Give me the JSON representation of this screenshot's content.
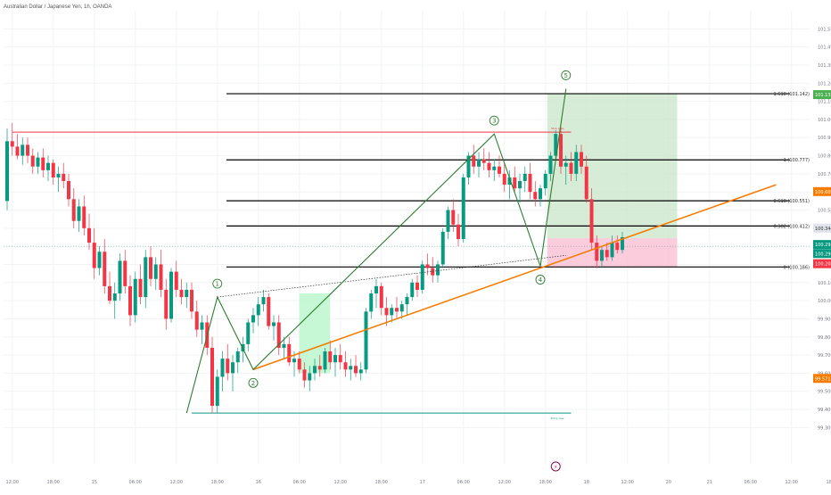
{
  "header": {
    "symbol_title": "Australian Dollar / Japanese Yen, 1h, OANDA"
  },
  "colors": {
    "bull": "#089981",
    "bear": "#f23645",
    "fib": "#000000",
    "trend": "#f57c00",
    "wave": "#2e7d32",
    "target_zone": "#c8e6c9",
    "stop_zone": "#f8bbd0",
    "resistance": "#f23645",
    "support": "#089981",
    "grid": "#f2f3f5",
    "current_price": "#089981",
    "fib1_badge": "#f57c00",
    "fib2_badge": "#4caf50",
    "marker_badge": "#880e4f",
    "low_badge": "#f57c00",
    "stop_badge": "#f23645"
  },
  "chart_data": {
    "type": "candlestick",
    "symbol": "Australian Dollar / Japanese Yen",
    "interval": "1h",
    "exchange": "OANDA",
    "ylim": [
      99.1,
      101.6
    ],
    "y_ticks": [
      "101.500",
      "101.400",
      "101.300",
      "101.200",
      "101.100",
      "101.000",
      "100.900",
      "100.800",
      "100.700",
      "100.600",
      "100.500",
      "100.400",
      "100.300",
      "100.200",
      "100.100",
      "100.000",
      "99.900",
      "99.800",
      "99.700",
      "99.600",
      "99.500",
      "99.400",
      "99.300"
    ],
    "y_tick_values": [
      101.5,
      101.4,
      101.3,
      101.2,
      101.1,
      101.0,
      100.9,
      100.8,
      100.7,
      100.6,
      100.5,
      100.4,
      100.3,
      100.2,
      100.1,
      100.0,
      99.9,
      99.8,
      99.7,
      99.6,
      99.5,
      99.4,
      99.3
    ],
    "x_ticks": [
      "12:00",
      "18:00",
      "15",
      "06:00",
      "12:00",
      "18:00",
      "16",
      "06:00",
      "12:00",
      "18:00",
      "17",
      "06:00",
      "12:00",
      "18:00",
      "18",
      "12:00",
      "20",
      "21",
      "06:00",
      "12:00",
      "18:00",
      "22",
      "06:00",
      "12:00"
    ],
    "x_tick_index": [
      1,
      9,
      17,
      25,
      33,
      41,
      49,
      57,
      65,
      73,
      81,
      89,
      97,
      105,
      113,
      121,
      129,
      137,
      145,
      153,
      161,
      169,
      177,
      185
    ],
    "candles": [
      [
        100.55,
        100.95,
        100.5,
        100.88
      ],
      [
        100.88,
        100.98,
        100.8,
        100.85
      ],
      [
        100.85,
        100.92,
        100.78,
        100.8
      ],
      [
        100.8,
        100.9,
        100.75,
        100.86
      ],
      [
        100.86,
        100.9,
        100.76,
        100.8
      ],
      [
        100.8,
        100.84,
        100.7,
        100.74
      ],
      [
        100.74,
        100.82,
        100.7,
        100.79
      ],
      [
        100.79,
        100.84,
        100.68,
        100.72
      ],
      [
        100.72,
        100.8,
        100.66,
        100.76
      ],
      [
        100.76,
        100.78,
        100.64,
        100.68
      ],
      [
        100.68,
        100.74,
        100.6,
        100.7
      ],
      [
        100.7,
        100.76,
        100.62,
        100.66
      ],
      [
        100.66,
        100.7,
        100.52,
        100.56
      ],
      [
        100.56,
        100.62,
        100.4,
        100.44
      ],
      [
        100.44,
        100.56,
        100.38,
        100.52
      ],
      [
        100.52,
        100.58,
        100.36,
        100.4
      ],
      [
        100.4,
        100.48,
        100.28,
        100.32
      ],
      [
        100.32,
        100.4,
        100.12,
        100.18
      ],
      [
        100.18,
        100.3,
        100.14,
        100.27
      ],
      [
        100.27,
        100.34,
        100.04,
        100.08
      ],
      [
        100.08,
        100.16,
        99.98,
        100.0
      ],
      [
        100.0,
        100.1,
        99.9,
        100.04
      ],
      [
        100.04,
        100.26,
        100.0,
        100.22
      ],
      [
        100.22,
        100.28,
        100.04,
        100.08
      ],
      [
        100.08,
        100.14,
        99.86,
        99.92
      ],
      [
        99.92,
        100.16,
        99.88,
        100.12
      ],
      [
        100.12,
        100.2,
        99.98,
        100.02
      ],
      [
        100.02,
        100.28,
        99.96,
        100.24
      ],
      [
        100.24,
        100.3,
        100.08,
        100.12
      ],
      [
        100.12,
        100.24,
        100.06,
        100.2
      ],
      [
        100.2,
        100.28,
        100.02,
        100.06
      ],
      [
        100.06,
        100.12,
        99.84,
        99.9
      ],
      [
        99.9,
        100.18,
        99.88,
        100.16
      ],
      [
        100.16,
        100.22,
        100.02,
        100.06
      ],
      [
        100.06,
        100.12,
        99.98,
        100.02
      ],
      [
        100.02,
        100.1,
        99.96,
        100.06
      ],
      [
        100.06,
        100.1,
        99.9,
        99.94
      ],
      [
        99.94,
        100.0,
        99.8,
        99.84
      ],
      [
        99.84,
        99.92,
        99.76,
        99.88
      ],
      [
        99.88,
        99.92,
        99.7,
        99.74
      ],
      [
        99.74,
        99.8,
        99.38,
        99.42
      ],
      [
        99.42,
        99.62,
        99.38,
        99.58
      ],
      [
        99.58,
        99.72,
        99.5,
        99.68
      ],
      [
        99.68,
        99.76,
        99.56,
        99.6
      ],
      [
        99.6,
        99.7,
        99.5,
        99.66
      ],
      [
        99.66,
        99.74,
        99.6,
        99.72
      ],
      [
        99.72,
        99.8,
        99.66,
        99.76
      ],
      [
        99.76,
        99.9,
        99.72,
        99.88
      ],
      [
        99.88,
        99.96,
        99.82,
        99.92
      ],
      [
        99.92,
        100.02,
        99.86,
        99.98
      ],
      [
        99.98,
        100.06,
        99.94,
        100.02
      ],
      [
        100.02,
        100.04,
        99.84,
        99.86
      ],
      [
        99.86,
        99.92,
        99.78,
        99.88
      ],
      [
        99.88,
        99.92,
        99.7,
        99.74
      ],
      [
        99.74,
        99.8,
        99.68,
        99.76
      ],
      [
        99.76,
        99.8,
        99.64,
        99.66
      ],
      [
        99.66,
        99.72,
        99.58,
        99.68
      ],
      [
        99.68,
        99.72,
        99.6,
        99.62
      ],
      [
        99.62,
        99.66,
        99.52,
        99.56
      ],
      [
        99.56,
        99.64,
        99.5,
        99.6
      ],
      [
        99.6,
        99.68,
        99.56,
        99.64
      ],
      [
        99.64,
        99.7,
        99.58,
        99.62
      ],
      [
        99.62,
        99.74,
        99.6,
        99.72
      ],
      [
        99.72,
        99.78,
        99.62,
        99.66
      ],
      [
        99.66,
        99.74,
        99.58,
        99.7
      ],
      [
        99.7,
        99.76,
        99.62,
        99.66
      ],
      [
        99.66,
        99.72,
        99.58,
        99.62
      ],
      [
        99.62,
        99.68,
        99.56,
        99.64
      ],
      [
        99.64,
        99.7,
        99.58,
        99.6
      ],
      [
        99.6,
        99.66,
        99.56,
        99.62
      ],
      [
        99.62,
        99.96,
        99.6,
        99.94
      ],
      [
        99.94,
        100.06,
        99.9,
        100.04
      ],
      [
        100.04,
        100.12,
        99.96,
        100.08
      ],
      [
        100.08,
        100.1,
        99.92,
        99.96
      ],
      [
        99.96,
        100.02,
        99.86,
        99.92
      ],
      [
        99.92,
        99.98,
        99.88,
        99.96
      ],
      [
        99.96,
        100.02,
        99.9,
        99.94
      ],
      [
        99.94,
        100.0,
        99.9,
        99.98
      ],
      [
        99.98,
        100.04,
        99.92,
        100.02
      ],
      [
        100.02,
        100.12,
        100.0,
        100.1
      ],
      [
        100.1,
        100.14,
        100.02,
        100.06
      ],
      [
        100.06,
        100.22,
        100.04,
        100.2
      ],
      [
        100.2,
        100.26,
        100.14,
        100.18
      ],
      [
        100.18,
        100.24,
        100.1,
        100.14
      ],
      [
        100.14,
        100.22,
        100.1,
        100.2
      ],
      [
        100.2,
        100.4,
        100.18,
        100.38
      ],
      [
        100.38,
        100.52,
        100.34,
        100.5
      ],
      [
        100.5,
        100.56,
        100.38,
        100.42
      ],
      [
        100.42,
        100.48,
        100.3,
        100.34
      ],
      [
        100.34,
        100.7,
        100.32,
        100.68
      ],
      [
        100.68,
        100.82,
        100.64,
        100.8
      ],
      [
        100.8,
        100.86,
        100.7,
        100.74
      ],
      [
        100.74,
        100.82,
        100.68,
        100.78
      ],
      [
        100.78,
        100.84,
        100.72,
        100.76
      ],
      [
        100.76,
        100.82,
        100.68,
        100.72
      ],
      [
        100.72,
        100.78,
        100.66,
        100.74
      ],
      [
        100.74,
        100.8,
        100.68,
        100.7
      ],
      [
        100.7,
        100.76,
        100.6,
        100.64
      ],
      [
        100.64,
        100.72,
        100.56,
        100.68
      ],
      [
        100.68,
        100.74,
        100.6,
        100.62
      ],
      [
        100.62,
        100.7,
        100.54,
        100.66
      ],
      [
        100.66,
        100.74,
        100.6,
        100.7
      ],
      [
        100.7,
        100.76,
        100.56,
        100.6
      ],
      [
        100.6,
        100.66,
        100.52,
        100.56
      ],
      [
        100.56,
        100.64,
        100.52,
        100.62
      ],
      [
        100.62,
        100.72,
        100.58,
        100.7
      ],
      [
        100.7,
        100.82,
        100.66,
        100.8
      ],
      [
        100.8,
        100.94,
        100.78,
        100.92
      ],
      [
        100.92,
        100.96,
        100.7,
        100.74
      ],
      [
        100.74,
        100.8,
        100.64,
        100.76
      ],
      [
        100.76,
        100.82,
        100.66,
        100.7
      ],
      [
        100.7,
        100.86,
        100.66,
        100.82
      ],
      [
        100.82,
        100.86,
        100.7,
        100.74
      ],
      [
        100.74,
        100.8,
        100.54,
        100.56
      ],
      [
        100.56,
        100.62,
        100.28,
        100.32
      ],
      [
        100.32,
        100.36,
        100.18,
        100.22
      ],
      [
        100.22,
        100.3,
        100.18,
        100.28
      ],
      [
        100.28,
        100.32,
        100.22,
        100.24
      ],
      [
        100.24,
        100.36,
        100.22,
        100.32
      ],
      [
        100.32,
        100.36,
        100.26,
        100.28
      ],
      [
        100.28,
        100.38,
        100.26,
        100.35
      ]
    ],
    "fib_levels": [
      {
        "ratio": 1.618,
        "label": "1.618 (101.142)",
        "price": 101.142
      },
      {
        "ratio": 1,
        "label": "1 (100.777)",
        "price": 100.777
      },
      {
        "ratio": 0.618,
        "label": "0.618 (100.551)",
        "price": 100.551
      },
      {
        "ratio": 0.382,
        "label": "0.382 (100.412)",
        "price": 100.412
      },
      {
        "ratio": 0,
        "label": "0 (100.186)",
        "price": 100.186
      }
    ],
    "price_badges": [
      {
        "label": "101.137",
        "price": 101.137,
        "color_key": "fib2_badge"
      },
      {
        "label": "100.602",
        "price": 100.602,
        "color_key": "fib1_badge"
      },
      {
        "label": "100.344",
        "price": 100.4,
        "color_key": "grid_badge"
      },
      {
        "label": "100.296",
        "price": 100.31,
        "color_key": "current_price"
      },
      {
        "label": "100.296",
        "price": 100.26,
        "color_key": "current_price"
      },
      {
        "label": "100.204",
        "price": 100.204,
        "color_key": "stop_badge"
      },
      {
        "label": "99.571",
        "price": 99.571,
        "color_key": "low_badge"
      }
    ],
    "resistance_level": {
      "price": 100.93,
      "label": "Stop Loss"
    },
    "support_level": {
      "price": 99.38,
      "label": "Entry Low"
    },
    "current_price": 100.3,
    "wave_points": [
      {
        "label": "1",
        "idx": 41,
        "price": 100.02
      },
      {
        "label": "2",
        "idx": 48,
        "price": 99.62
      },
      {
        "label": "3",
        "idx": 95,
        "price": 100.92
      },
      {
        "label": "4",
        "idx": 104,
        "price": 100.19
      },
      {
        "label": "5",
        "idx": 109,
        "price": 101.17
      }
    ],
    "elliott_path": [
      [
        35,
        99.38
      ],
      [
        41,
        100.02
      ],
      [
        48,
        99.62
      ],
      [
        95,
        100.92
      ],
      [
        104,
        100.19
      ],
      [
        109,
        101.17
      ]
    ],
    "trend_line": {
      "from": [
        48,
        99.62
      ],
      "to": [
        150,
        100.64
      ]
    },
    "dotted_line": {
      "from": [
        41,
        100.02
      ],
      "to": [
        109,
        100.25
      ]
    },
    "position_box": {
      "entry_idx": 105,
      "end_idx": 130,
      "target_price": 101.142,
      "entry_price": 100.3,
      "stop_price": 100.204
    },
    "small_box": {
      "idx_start": 57,
      "idx_end": 63,
      "price_top": 100.04,
      "price_bottom": 99.6
    },
    "bottom_marker": {
      "label": "⚡",
      "idx": 107
    }
  }
}
